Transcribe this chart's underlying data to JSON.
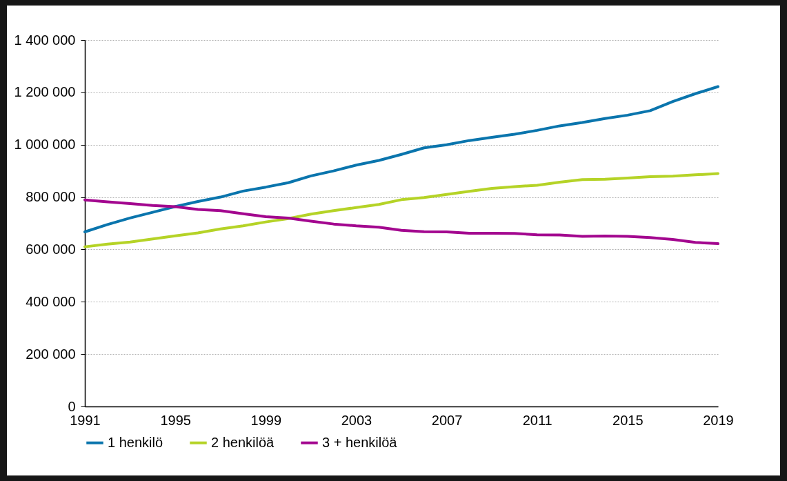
{
  "chart_data": {
    "type": "line",
    "x": [
      1991,
      1992,
      1993,
      1994,
      1995,
      1996,
      1997,
      1998,
      1999,
      2000,
      2001,
      2002,
      2003,
      2004,
      2005,
      2006,
      2007,
      2008,
      2009,
      2010,
      2011,
      2012,
      2013,
      2014,
      2015,
      2016,
      2017,
      2018,
      2019
    ],
    "series": [
      {
        "name": "1 henkilö",
        "color": "#0a75ad",
        "values": [
          667000,
          695000,
          720000,
          742000,
          764000,
          783000,
          800000,
          823000,
          838000,
          855000,
          881000,
          900000,
          922000,
          940000,
          963000,
          988000,
          1000000,
          1016000,
          1028000,
          1040000,
          1055000,
          1072000,
          1085000,
          1100000,
          1113000,
          1130000,
          1165000,
          1195000,
          1222000
        ]
      },
      {
        "name": "2 henkilöä",
        "color": "#b5d327",
        "values": [
          610000,
          620000,
          628000,
          640000,
          652000,
          663000,
          678000,
          690000,
          705000,
          718000,
          735000,
          748000,
          760000,
          772000,
          790000,
          798000,
          810000,
          822000,
          833000,
          840000,
          845000,
          857000,
          867000,
          868000,
          873000,
          878000,
          880000,
          885000,
          890000
        ]
      },
      {
        "name": "3 + henkilöä",
        "color": "#a3078f",
        "values": [
          789000,
          782000,
          775000,
          768000,
          763000,
          753000,
          748000,
          736000,
          725000,
          720000,
          708000,
          697000,
          690000,
          685000,
          673000,
          668000,
          667000,
          662000,
          662000,
          661000,
          656000,
          655000,
          650000,
          651000,
          650000,
          645000,
          638000,
          627000,
          622000
        ]
      }
    ],
    "xlim": [
      1991,
      2019
    ],
    "xticks": [
      1991,
      1995,
      1999,
      2003,
      2007,
      2011,
      2015,
      2019
    ],
    "ylim": [
      0,
      1400000
    ],
    "yticks": [
      0,
      {
        "value": 200000,
        "label": "200 000"
      },
      {
        "value": 400000,
        "label": "400 000"
      },
      {
        "value": 600000,
        "label": "600 000"
      },
      {
        "value": 800000,
        "label": "800 000"
      },
      {
        "value": 1000000,
        "label": "1 000 000"
      },
      {
        "value": 1200000,
        "label": "1 200 000"
      },
      {
        "value": 1400000,
        "label": "1 400 000"
      }
    ],
    "grid": "y",
    "legend": "bottom",
    "line_style": "solid"
  }
}
